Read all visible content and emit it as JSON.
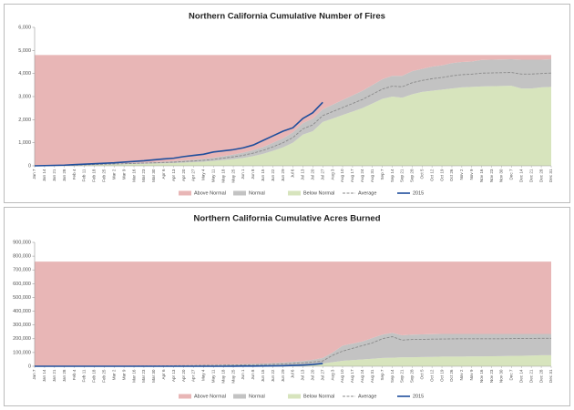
{
  "chart_data": [
    {
      "type": "area",
      "title": "Northern California Cumulative Number of Fires",
      "categories": [
        "Jan 7",
        "Jan 14",
        "Jan 21",
        "Jan 28",
        "Feb 4",
        "Feb 11",
        "Feb 18",
        "Feb 25",
        "Mar 2",
        "Mar 9",
        "Mar 16",
        "Mar 23",
        "Mar 30",
        "Apr 6",
        "Apr 13",
        "Apr 20",
        "Apr 27",
        "May 4",
        "May 11",
        "May 18",
        "May 25",
        "Jun 1",
        "Jun 8",
        "Jun 15",
        "Jun 22",
        "Jun 29",
        "Jul 6",
        "Jul 13",
        "Jul 20",
        "Jul 27",
        "Aug 3",
        "Aug 10",
        "Aug 17",
        "Aug 24",
        "Aug 31",
        "Sep 7",
        "Sep 14",
        "Sep 21",
        "Sep 28",
        "Oct 5",
        "Oct 12",
        "Oct 19",
        "Oct 26",
        "Nov 2",
        "Nov 9",
        "Nov 16",
        "Nov 23",
        "Nov 30",
        "Dec 7",
        "Dec 14",
        "Dec 21",
        "Dec 28",
        "Dec 31"
      ],
      "series": [
        {
          "name": "Above Normal",
          "kind": "area",
          "color": "#e8b6b6",
          "values": [
            4800,
            4790,
            4780,
            4770,
            4760,
            4745,
            4730,
            4715,
            4700,
            4685,
            4670,
            4655,
            4640,
            4620,
            4600,
            4570,
            4540,
            4500,
            4450,
            4380,
            4310,
            4230,
            4120,
            3980,
            3800,
            3600,
            3350,
            2950,
            2750,
            2350,
            2150,
            1950,
            1750,
            1550,
            1300,
            1050,
            900,
            900,
            700,
            600,
            500,
            450,
            350,
            300,
            280,
            210,
            200,
            190,
            180,
            200,
            200,
            200,
            180
          ]
        },
        {
          "name": "Normal",
          "kind": "area",
          "color": "#c3c3c3",
          "values": [
            0,
            5,
            10,
            15,
            20,
            25,
            30,
            35,
            40,
            45,
            50,
            55,
            60,
            70,
            80,
            90,
            100,
            120,
            140,
            170,
            200,
            230,
            260,
            300,
            350,
            400,
            450,
            500,
            550,
            550,
            600,
            650,
            700,
            750,
            800,
            850,
            900,
            950,
            1000,
            1000,
            1050,
            1050,
            1100,
            1100,
            1100,
            1150,
            1150,
            1150,
            1150,
            1250,
            1250,
            1200,
            1200
          ]
        },
        {
          "name": "Below Normal",
          "kind": "area",
          "color": "#d7e4bd",
          "values": [
            0,
            5,
            10,
            15,
            20,
            30,
            40,
            50,
            60,
            70,
            80,
            90,
            100,
            110,
            120,
            140,
            160,
            180,
            210,
            250,
            290,
            340,
            420,
            520,
            650,
            800,
            1000,
            1350,
            1500,
            1900,
            2050,
            2200,
            2350,
            2500,
            2700,
            2900,
            3000,
            2950,
            3100,
            3200,
            3250,
            3300,
            3350,
            3400,
            3420,
            3440,
            3450,
            3460,
            3470,
            3350,
            3350,
            3400,
            3420
          ]
        },
        {
          "name": "Average",
          "kind": "line",
          "dash": true,
          "color": "#8a8a8a",
          "values": [
            0,
            8,
            15,
            22,
            30,
            42,
            55,
            68,
            80,
            92,
            105,
            118,
            130,
            145,
            160,
            185,
            210,
            240,
            280,
            335,
            390,
            455,
            550,
            670,
            825,
            1000,
            1225,
            1600,
            1775,
            2175,
            2350,
            2525,
            2700,
            2875,
            3100,
            3325,
            3450,
            3425,
            3600,
            3700,
            3775,
            3825,
            3900,
            3950,
            3970,
            4015,
            4025,
            4035,
            4045,
            3975,
            3975,
            4000,
            4020
          ]
        },
        {
          "name": "2015",
          "kind": "line",
          "color": "#1f4e9c",
          "values": [
            0,
            10,
            20,
            30,
            50,
            70,
            90,
            110,
            130,
            160,
            190,
            220,
            260,
            300,
            330,
            400,
            450,
            500,
            600,
            650,
            700,
            780,
            900,
            1100,
            1300,
            1500,
            1650,
            2050,
            2300,
            2750,
            null,
            null,
            null,
            null,
            null,
            null,
            null,
            null,
            null,
            null,
            null,
            null,
            null,
            null,
            null,
            null,
            null,
            null,
            null,
            null,
            null,
            null,
            null
          ]
        }
      ],
      "ylim": [
        0,
        6000
      ],
      "yticks": [
        0,
        {
          "value": 1000,
          "label": "1,000"
        },
        {
          "value": 2000,
          "label": "2,000"
        },
        {
          "value": 3000,
          "label": "3,000"
        },
        {
          "value": 4000,
          "label": "4,000"
        },
        {
          "value": 5000,
          "label": "5,000"
        },
        {
          "value": 6000,
          "label": "6,000"
        }
      ]
    },
    {
      "type": "area",
      "title": "Northern California Cumulative Acres Burned",
      "categories": [
        "Jan 7",
        "Jan 14",
        "Jan 21",
        "Jan 28",
        "Feb 4",
        "Feb 11",
        "Feb 18",
        "Feb 25",
        "Mar 2",
        "Mar 9",
        "Mar 16",
        "Mar 23",
        "Mar 30",
        "Apr 6",
        "Apr 13",
        "Apr 20",
        "Apr 27",
        "May 4",
        "May 11",
        "May 18",
        "May 25",
        "Jun 1",
        "Jun 8",
        "Jun 15",
        "Jun 22",
        "Jun 29",
        "Jul 6",
        "Jul 13",
        "Jul 20",
        "Jul 27",
        "Aug 3",
        "Aug 10",
        "Aug 17",
        "Aug 24",
        "Aug 31",
        "Sep 7",
        "Sep 14",
        "Sep 21",
        "Sep 28",
        "Oct 5",
        "Oct 12",
        "Oct 19",
        "Oct 26",
        "Nov 2",
        "Nov 9",
        "Nov 16",
        "Nov 23",
        "Nov 30",
        "Dec 7",
        "Dec 14",
        "Dec 21",
        "Dec 28",
        "Dec 31"
      ],
      "series": [
        {
          "name": "Above Normal",
          "kind": "area",
          "color": "#e8b6b6",
          "values": [
            760000,
            760000,
            760000,
            760000,
            760000,
            760000,
            760000,
            760000,
            760000,
            760000,
            758500,
            757000,
            757000,
            755500,
            754000,
            753000,
            751500,
            750000,
            749000,
            747500,
            746000,
            744000,
            742000,
            740000,
            737000,
            733000,
            728000,
            722000,
            713000,
            700000,
            660000,
            610000,
            595000,
            580000,
            555000,
            530000,
            518000,
            535000,
            530000,
            528000,
            527000,
            525000,
            525000,
            525000,
            525000,
            525000,
            525000,
            525000,
            525000,
            525000,
            525000,
            525000,
            525000
          ]
        },
        {
          "name": "Normal",
          "kind": "area",
          "color": "#c3c3c3",
          "values": [
            0,
            0,
            0,
            0,
            0,
            0,
            0,
            0,
            0,
            0,
            1000,
            2000,
            2000,
            3000,
            4000,
            5000,
            6000,
            7000,
            8000,
            9000,
            10000,
            11000,
            12000,
            13000,
            15000,
            18000,
            22000,
            26000,
            32000,
            40000,
            70000,
            110000,
            120000,
            130000,
            150000,
            170000,
            180000,
            160000,
            165000,
            165000,
            165000,
            165000,
            165000,
            165000,
            163000,
            163000,
            162000,
            161000,
            160000,
            159000,
            157000,
            155000,
            155000
          ]
        },
        {
          "name": "Below Normal",
          "kind": "area",
          "color": "#d7e4bd",
          "values": [
            0,
            0,
            0,
            0,
            0,
            0,
            0,
            0,
            0,
            0,
            500,
            1000,
            1000,
            1500,
            2000,
            2000,
            2500,
            3000,
            3000,
            3500,
            4000,
            5000,
            6000,
            7000,
            8000,
            9000,
            10000,
            12000,
            15000,
            20000,
            30000,
            40000,
            45000,
            50000,
            55000,
            60000,
            62000,
            65000,
            65000,
            67000,
            68000,
            70000,
            70000,
            70000,
            72000,
            72000,
            73000,
            74000,
            75000,
            76000,
            78000,
            80000,
            80000
          ]
        },
        {
          "name": "Average",
          "kind": "line",
          "dash": true,
          "color": "#8a8a8a",
          "values": [
            0,
            0,
            0,
            0,
            0,
            0,
            0,
            0,
            0,
            0,
            1000,
            2000,
            2000,
            3000,
            4000,
            4500,
            5500,
            6500,
            7000,
            8000,
            9000,
            10000,
            11000,
            12000,
            14000,
            17000,
            21000,
            25000,
            31000,
            38000,
            80000,
            110000,
            130000,
            150000,
            170000,
            200000,
            215000,
            190000,
            195000,
            195000,
            197000,
            198000,
            199000,
            200000,
            200000,
            200000,
            200000,
            200000,
            201000,
            202000,
            202000,
            203000,
            203000
          ]
        },
        {
          "name": "2015",
          "kind": "line",
          "color": "#1f4e9c",
          "values": [
            0,
            0,
            0,
            0,
            0,
            0,
            0,
            0,
            0,
            0,
            0,
            0,
            0,
            0,
            0,
            0,
            0,
            0,
            0,
            0,
            500,
            1000,
            1500,
            2000,
            3000,
            4000,
            6000,
            9000,
            13000,
            20000,
            null,
            null,
            null,
            null,
            null,
            null,
            null,
            null,
            null,
            null,
            null,
            null,
            null,
            null,
            null,
            null,
            null,
            null,
            null,
            null,
            null,
            null,
            null
          ]
        }
      ],
      "ylim": [
        0,
        900000
      ],
      "yticks": [
        0,
        {
          "value": 100000,
          "label": "100,000"
        },
        {
          "value": 200000,
          "label": "200,000"
        },
        {
          "value": 300000,
          "label": "300,000"
        },
        {
          "value": 400000,
          "label": "400,000"
        },
        {
          "value": 500000,
          "label": "500,000"
        },
        {
          "value": 600000,
          "label": "600,000"
        },
        {
          "value": 700000,
          "label": "700,000"
        },
        {
          "value": 800000,
          "label": "800,000"
        },
        {
          "value": 900000,
          "label": "900,000"
        }
      ]
    }
  ]
}
